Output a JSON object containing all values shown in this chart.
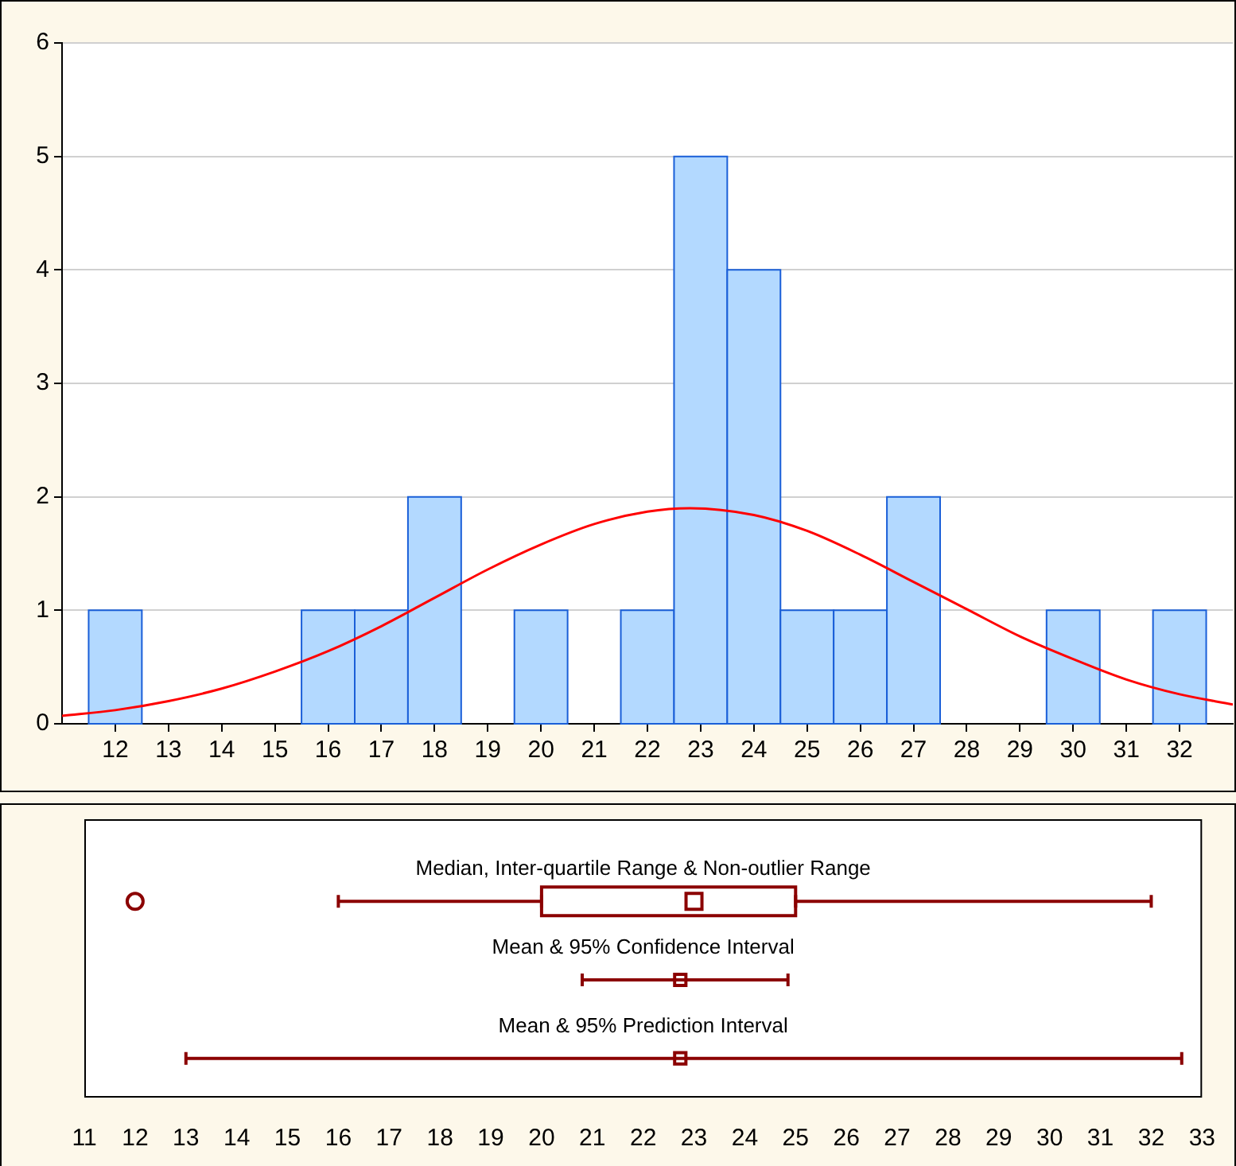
{
  "chart_data": [
    {
      "type": "histogram",
      "bins": [
        11.5,
        12.5,
        13.5,
        14.5,
        15.5,
        16.5,
        17.5,
        18.5,
        19.5,
        20.5,
        21.5,
        22.5,
        23.5,
        24.5,
        25.5,
        26.5,
        27.5,
        28.5,
        29.5,
        30.5,
        31.5,
        32.5
      ],
      "values": [
        1,
        0,
        0,
        0,
        1,
        1,
        2,
        0,
        1,
        0,
        1,
        5,
        4,
        1,
        1,
        2,
        0,
        0,
        1,
        0,
        1
      ],
      "color": "#b3d9ff",
      "xlim": [
        11,
        33
      ],
      "ylim": [
        0,
        6
      ],
      "xticks": [
        12,
        13,
        14,
        15,
        16,
        17,
        18,
        19,
        20,
        21,
        22,
        23,
        24,
        25,
        26,
        27,
        28,
        29,
        30,
        31,
        32
      ],
      "yticks": [
        0,
        1,
        2,
        3,
        4,
        5,
        6
      ],
      "grid": "y",
      "legend": false,
      "marker": "none",
      "series": [
        {
          "type": "line",
          "color": "#ff0000",
          "x": [
            11,
            12,
            13,
            14,
            15,
            16,
            17,
            18,
            19,
            20,
            21,
            22,
            22.8,
            24,
            25,
            26,
            27,
            28,
            29,
            30,
            31,
            32,
            33
          ],
          "values": [
            0.07,
            0.12,
            0.2,
            0.31,
            0.46,
            0.64,
            0.86,
            1.11,
            1.36,
            1.58,
            1.76,
            1.87,
            1.9,
            1.84,
            1.7,
            1.49,
            1.25,
            1.01,
            0.77,
            0.57,
            0.39,
            0.26,
            0.17
          ]
        }
      ]
    },
    {
      "type": "box",
      "orientation": "horizontal",
      "categories": [
        "Median, Inter-quartile Range & Non-outlier Range",
        "Mean & 95% Confidence Interval",
        "Mean & 95% Prediction Interval"
      ],
      "xlim": [
        11,
        33
      ],
      "xticks": [
        11,
        12,
        13,
        14,
        15,
        16,
        17,
        18,
        19,
        20,
        21,
        22,
        23,
        24,
        25,
        26,
        27,
        28,
        29,
        30,
        31,
        32,
        33
      ],
      "grid": false,
      "legend": false,
      "tick_labels": "x",
      "marker": "square",
      "series": [
        {
          "type": "box",
          "color": "#8b0000",
          "boxes": [
            {
              "low": 16,
              "q1": 20,
              "median": 23,
              "q3": 25,
              "high": 32,
              "outliers": [
                12
              ]
            },
            null,
            null
          ]
        },
        {
          "type": "scatter",
          "color": "#8b0000",
          "values": [
            null,
            22.73,
            22.73
          ],
          "errors": [
            null,
            [
              20.8,
              24.85
            ],
            [
              13,
              32.6
            ]
          ]
        }
      ]
    }
  ]
}
